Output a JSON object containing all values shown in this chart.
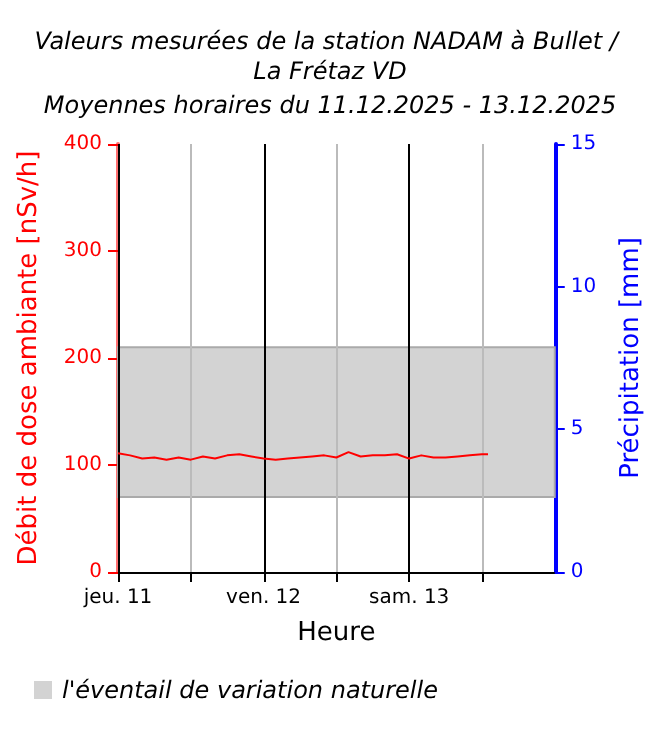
{
  "chart_data": {
    "type": "line",
    "title": "Valeurs mesurées de la station NADAM à Bullet / La Frétaz VD",
    "subtitle": "Moyennes horaires du 11.12.2025 - 13.12.2025",
    "xlabel": "Heure",
    "ylabel": "Débit de dose ambiante [nSv/h]",
    "y2label": "Précipitation [mm]",
    "x": [
      "2025-12-11T00:00",
      "2025-12-11T02:00",
      "2025-12-11T04:00",
      "2025-12-11T06:00",
      "2025-12-11T08:00",
      "2025-12-11T10:00",
      "2025-12-11T12:00",
      "2025-12-11T14:00",
      "2025-12-11T16:00",
      "2025-12-11T18:00",
      "2025-12-11T20:00",
      "2025-12-11T22:00",
      "2025-12-12T00:00",
      "2025-12-12T02:00",
      "2025-12-12T04:00",
      "2025-12-12T06:00",
      "2025-12-12T08:00",
      "2025-12-12T10:00",
      "2025-12-12T12:00",
      "2025-12-12T14:00",
      "2025-12-12T16:00",
      "2025-12-12T18:00",
      "2025-12-12T20:00",
      "2025-12-12T22:00",
      "2025-12-13T00:00",
      "2025-12-13T02:00",
      "2025-12-13T04:00",
      "2025-12-13T06:00",
      "2025-12-13T08:00",
      "2025-12-13T10:00",
      "2025-12-13T12:00",
      "2025-12-13T13:00"
    ],
    "series": [
      {
        "color": "#ff0000",
        "values": [
          111,
          109,
          106,
          107,
          105,
          107,
          105,
          108,
          106,
          109,
          110,
          108,
          106,
          105,
          106,
          107,
          108,
          109,
          107,
          112,
          108,
          109,
          109,
          110,
          106,
          109,
          107,
          107,
          108,
          109,
          110,
          110
        ]
      }
    ],
    "xlim": [
      "2025-12-11T00:00",
      "2025-12-14T00:00"
    ],
    "xticks": [
      {
        "value": "2025-12-11T00:00",
        "label": "jeu. 11"
      },
      {
        "value": "2025-12-11T12:00",
        "label": null
      },
      {
        "value": "2025-12-12T00:00",
        "label": "ven. 12"
      },
      {
        "value": "2025-12-12T12:00",
        "label": null
      },
      {
        "value": "2025-12-13T00:00",
        "label": "sam. 13"
      },
      {
        "value": "2025-12-13T12:00",
        "label": null
      }
    ],
    "ylim": [
      0,
      400
    ],
    "yticks": [
      0,
      100,
      200,
      300,
      400
    ],
    "y2lim": [
      0,
      15
    ],
    "y2ticks": [
      0,
      5,
      10,
      15
    ],
    "bands": [
      {
        "axis": "y",
        "from": 70,
        "to": 210,
        "label": "l'éventail de variation naturelle",
        "color": "#d3d3d3"
      }
    ],
    "grid": "x",
    "legend": "bottom left",
    "marker": "none",
    "line_style": "solid"
  }
}
